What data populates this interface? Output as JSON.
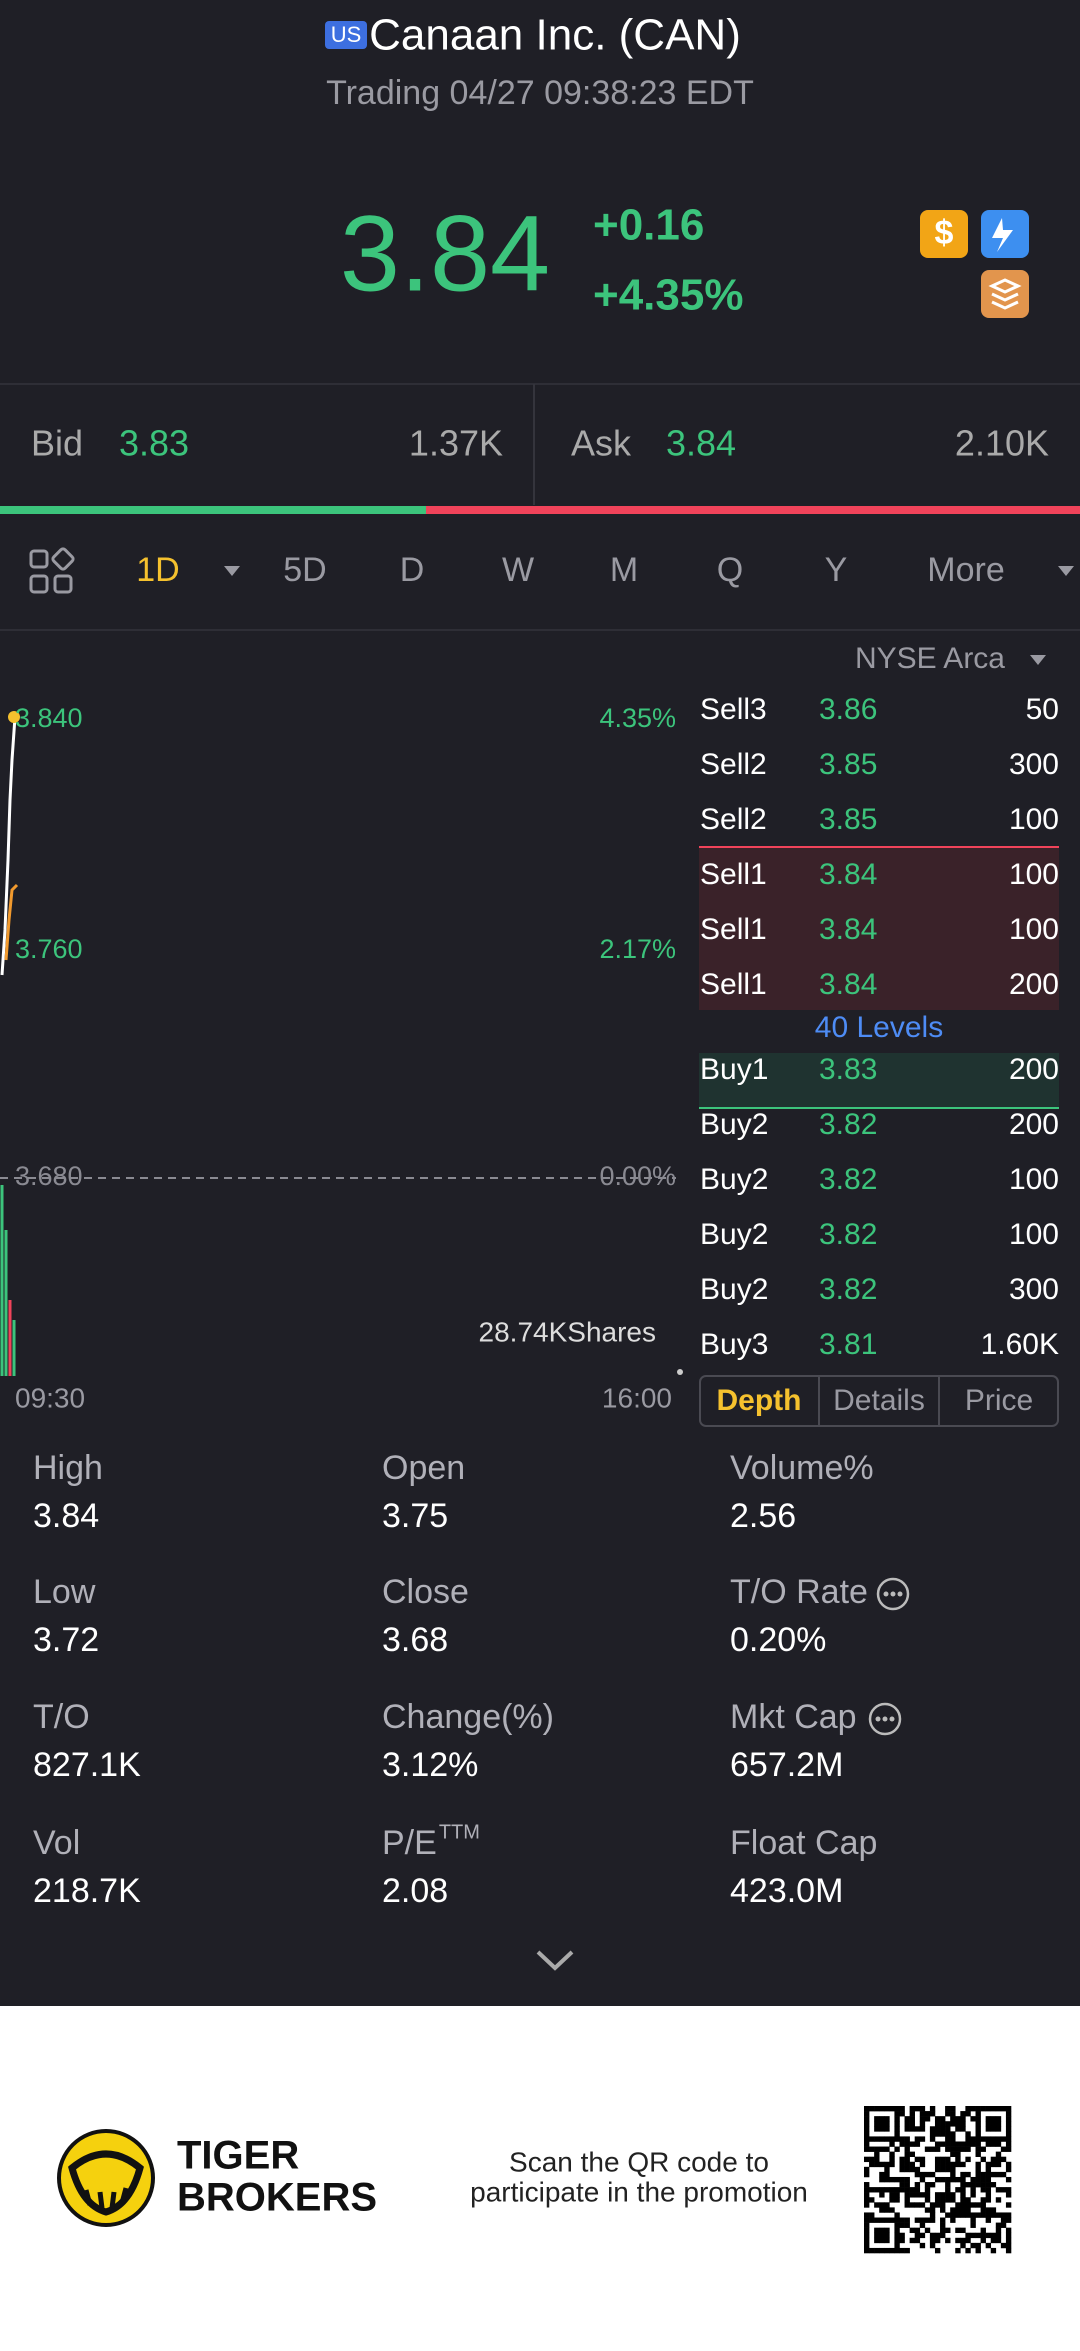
{
  "header": {
    "market": "US",
    "title": "Canaan Inc. (CAN)",
    "status": "Trading 04/27 09:38:23 EDT"
  },
  "quote": {
    "price": "3.84",
    "change": "+0.16",
    "change_pct": "+4.35%"
  },
  "bid": {
    "label": "Bid",
    "price": "3.83",
    "size": "1.37K"
  },
  "ask": {
    "label": "Ask",
    "price": "3.84",
    "size": "2.10K"
  },
  "tabs": [
    "1D",
    "5D",
    "D",
    "W",
    "M",
    "Q",
    "Y",
    "More"
  ],
  "chart": {
    "exchange": "NYSE Arca",
    "price_labels": [
      "3.840",
      "3.760",
      "3.680"
    ],
    "pct_labels": [
      "4.35%",
      "2.17%",
      "0.00%"
    ],
    "volume": "28.74KShares",
    "start_time": "09:30",
    "end_time": "16:00"
  },
  "order_book": {
    "sell": [
      {
        "level": "Sell3",
        "price": "3.86",
        "size": "50"
      },
      {
        "level": "Sell2",
        "price": "3.85",
        "size": "300"
      },
      {
        "level": "Sell2",
        "price": "3.85",
        "size": "100"
      },
      {
        "level": "Sell1",
        "price": "3.84",
        "size": "100"
      },
      {
        "level": "Sell1",
        "price": "3.84",
        "size": "100"
      },
      {
        "level": "Sell1",
        "price": "3.84",
        "size": "200"
      }
    ],
    "levels": "40 Levels",
    "buy": [
      {
        "level": "Buy1",
        "price": "3.83",
        "size": "200"
      },
      {
        "level": "Buy2",
        "price": "3.82",
        "size": "200"
      },
      {
        "level": "Buy2",
        "price": "3.82",
        "size": "100"
      },
      {
        "level": "Buy2",
        "price": "3.82",
        "size": "100"
      },
      {
        "level": "Buy2",
        "price": "3.82",
        "size": "300"
      },
      {
        "level": "Buy3",
        "price": "3.81",
        "size": "1.60K"
      }
    ],
    "tabs": [
      "Depth",
      "Details",
      "Price"
    ]
  },
  "stats": [
    {
      "label": "High",
      "value": "3.84"
    },
    {
      "label": "Open",
      "value": "3.75"
    },
    {
      "label": "Volume%",
      "value": "2.56"
    },
    {
      "label": "Low",
      "value": "3.72"
    },
    {
      "label": "Close",
      "value": "3.68"
    },
    {
      "label": "T/O Rate",
      "value": "0.20%"
    },
    {
      "label": "T/O",
      "value": "827.1K"
    },
    {
      "label": "Change(%)",
      "value": "3.12%"
    },
    {
      "label": "Mkt Cap",
      "value": "657.2M"
    },
    {
      "label": "Vol",
      "value": "218.7K"
    },
    {
      "label": "P/E",
      "label_sup": "TTM",
      "value": "2.08"
    },
    {
      "label": "Float Cap",
      "value": "423.0M"
    }
  ],
  "footer": {
    "brand_line1": "TIGER",
    "brand_line2": "BROKERS",
    "promo_line1": "Scan the QR code to",
    "promo_line2": "participate in the promotion"
  }
}
